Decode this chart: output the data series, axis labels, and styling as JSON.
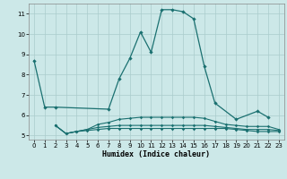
{
  "xlabel": "Humidex (Indice chaleur)",
  "background_color": "#cce8e8",
  "grid_color": "#aacccc",
  "line_color": "#1a7070",
  "xlim": [
    -0.5,
    23.5
  ],
  "ylim": [
    4.8,
    11.5
  ],
  "yticks": [
    5,
    6,
    7,
    8,
    9,
    10,
    11
  ],
  "xticks": [
    0,
    1,
    2,
    3,
    4,
    5,
    6,
    7,
    8,
    9,
    10,
    11,
    12,
    13,
    14,
    15,
    16,
    17,
    18,
    19,
    20,
    21,
    22,
    23
  ],
  "series": [
    {
      "x": [
        0,
        1,
        2,
        7,
        8,
        9,
        10,
        11,
        12,
        13,
        14,
        15,
        16,
        17,
        19,
        21,
        22
      ],
      "y": [
        8.7,
        6.4,
        6.4,
        6.3,
        7.8,
        8.8,
        10.1,
        9.1,
        11.2,
        11.2,
        11.1,
        10.75,
        8.4,
        6.6,
        5.8,
        6.2,
        5.9
      ]
    },
    {
      "x": [
        2,
        3,
        4,
        5,
        6,
        7,
        8,
        9,
        10,
        11,
        12,
        13,
        14,
        15,
        16,
        17,
        18,
        19,
        20,
        21,
        22,
        23
      ],
      "y": [
        5.5,
        5.1,
        5.2,
        5.25,
        5.3,
        5.35,
        5.35,
        5.35,
        5.35,
        5.35,
        5.35,
        5.35,
        5.35,
        5.35,
        5.35,
        5.35,
        5.35,
        5.3,
        5.25,
        5.2,
        5.2,
        5.2
      ]
    },
    {
      "x": [
        2,
        3,
        4,
        5,
        6,
        7,
        8,
        9,
        10,
        11,
        12,
        13,
        14,
        15,
        16,
        17,
        18,
        19,
        20,
        21,
        22,
        23
      ],
      "y": [
        5.5,
        5.1,
        5.2,
        5.3,
        5.4,
        5.45,
        5.5,
        5.5,
        5.5,
        5.5,
        5.5,
        5.5,
        5.5,
        5.5,
        5.5,
        5.45,
        5.4,
        5.35,
        5.3,
        5.3,
        5.3,
        5.25
      ]
    },
    {
      "x": [
        2,
        3,
        4,
        5,
        6,
        7,
        8,
        9,
        10,
        11,
        12,
        13,
        14,
        15,
        16,
        17,
        18,
        19,
        20,
        21,
        22,
        23
      ],
      "y": [
        5.5,
        5.1,
        5.2,
        5.3,
        5.55,
        5.65,
        5.8,
        5.85,
        5.9,
        5.9,
        5.9,
        5.9,
        5.9,
        5.9,
        5.85,
        5.7,
        5.55,
        5.5,
        5.45,
        5.45,
        5.45,
        5.3
      ]
    }
  ]
}
